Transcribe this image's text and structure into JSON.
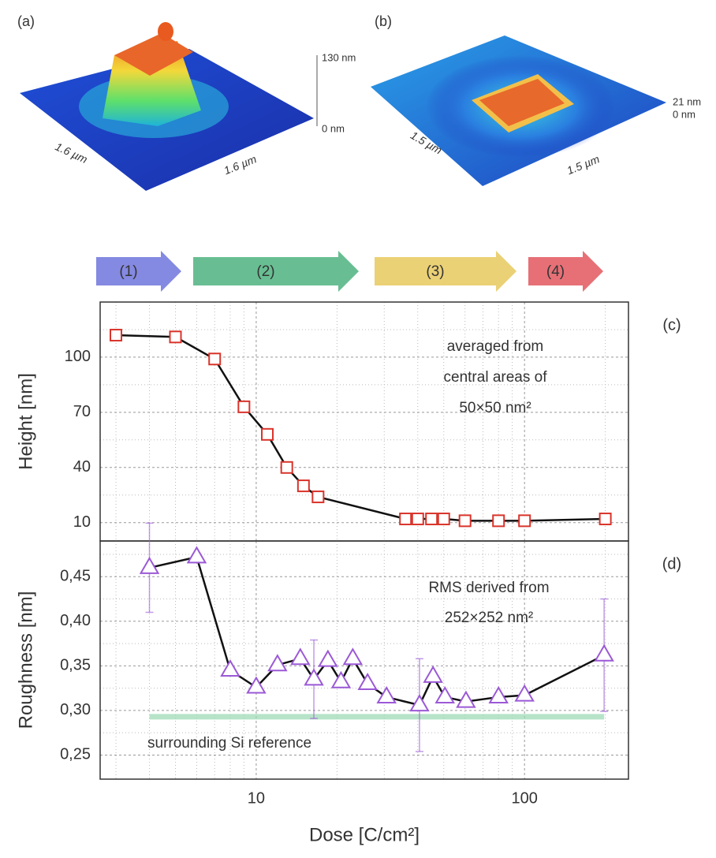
{
  "panels": [
    {
      "label": "(a)",
      "axis_labels": [
        "1.6 µm",
        "1.6 µm"
      ],
      "z_labels": [
        "130 nm",
        "0 nm"
      ]
    },
    {
      "label": "(b)",
      "axis_labels": [
        "1.5 µm",
        "1.5 µm"
      ],
      "z_labels": [
        "21 nm",
        "0 nm"
      ]
    }
  ],
  "stages": [
    {
      "label": "(1)",
      "color": "#6f74dc"
    },
    {
      "label": "(2)",
      "color": "#4db37f"
    },
    {
      "label": "(3)",
      "color": "#e8c95e"
    },
    {
      "label": "(4)",
      "color": "#e2575e"
    }
  ],
  "chart_data": [
    {
      "type": "line",
      "panel_label": "(c)",
      "y_label": "Height [nm]",
      "annotation": [
        "averaged from",
        "central areas of",
        "50×50 nm²"
      ],
      "annotation_color": "#e0302a",
      "x": [
        3,
        5,
        7,
        9,
        11,
        13,
        15,
        17,
        36,
        40,
        45,
        50,
        60,
        80,
        100,
        200
      ],
      "series": [
        {
          "color": "#d9342b",
          "line_color": "#111111",
          "marker": "square",
          "values": [
            112,
            111,
            99,
            73,
            58,
            40,
            30,
            24,
            12,
            12,
            12,
            12,
            11,
            11,
            11,
            12
          ]
        }
      ],
      "x_log": true,
      "xlim": [
        2.62,
        244
      ],
      "xticks": [
        10,
        100
      ],
      "xminor": [
        3,
        4,
        5,
        6,
        7,
        8,
        9,
        20,
        30,
        40,
        50,
        60,
        70,
        80,
        90,
        200
      ],
      "x_tick_labels": false,
      "ylim": [
        0,
        130
      ],
      "yticks": [
        10,
        40,
        70,
        100
      ],
      "yminor": [
        25,
        55,
        85,
        115
      ],
      "grid": true
    },
    {
      "type": "line",
      "panel_label": "(d)",
      "y_label": "Roughness [nm]",
      "x_label": "Dose [C/cm²]",
      "annotation": [
        "RMS derived from",
        "252×252 nm²"
      ],
      "annotation_color": "#9b4fd1",
      "x": [
        4,
        6,
        8,
        10,
        12,
        14.6,
        16.4,
        18.5,
        20.7,
        22.9,
        26,
        30.6,
        40.6,
        45.6,
        50.5,
        60.5,
        80,
        100,
        198
      ],
      "series": [
        {
          "color": "#9b59d6",
          "line_color": "#111111",
          "marker": "triangle",
          "values": [
            0.46,
            0.472,
            0.345,
            0.326,
            0.351,
            0.358,
            0.335,
            0.356,
            0.332,
            0.358,
            0.33,
            0.315,
            0.306,
            0.338,
            0.315,
            0.31,
            0.315,
            0.317,
            0.362
          ],
          "errors": [
            0.05,
            null,
            null,
            null,
            null,
            null,
            0.044,
            null,
            null,
            null,
            null,
            null,
            0.052,
            null,
            null,
            null,
            null,
            null,
            0.063
          ]
        }
      ],
      "reference": {
        "value": 0.293,
        "label": "surrounding Si reference",
        "color": "#9ad9b2"
      },
      "x_log": true,
      "xlim": [
        2.62,
        244
      ],
      "xticks": [
        10,
        100
      ],
      "xminor": [
        3,
        4,
        5,
        6,
        7,
        8,
        9,
        20,
        30,
        40,
        50,
        60,
        70,
        80,
        90,
        200
      ],
      "x_tick_labels": true,
      "ylim": [
        0.223,
        0.49
      ],
      "yticks": [
        {
          "value": 0.25,
          "label": "0,25"
        },
        {
          "value": 0.3,
          "label": "0,30"
        },
        {
          "value": 0.35,
          "label": "0,35"
        },
        {
          "value": 0.4,
          "label": "0,40"
        },
        {
          "value": 0.45,
          "label": "0,45"
        }
      ],
      "yminor": [
        0.275,
        0.325,
        0.375,
        0.425,
        0.475
      ],
      "grid": true
    }
  ]
}
